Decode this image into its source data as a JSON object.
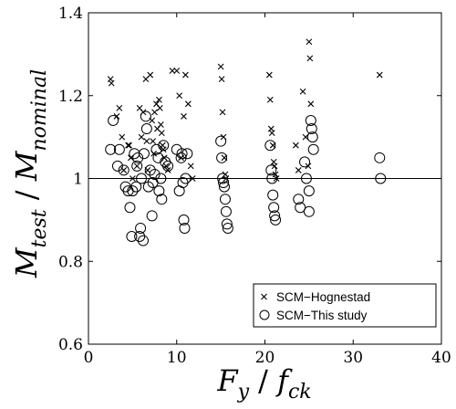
{
  "chart_data": {
    "type": "scatter",
    "title": "",
    "xlim": [
      0,
      40
    ],
    "ylim": [
      0.6,
      1.4
    ],
    "xticks": [
      0,
      10,
      20,
      30,
      40
    ],
    "yticks": [
      0.6,
      0.8,
      1,
      1.2,
      1.4
    ],
    "xtick_labels": [
      "0",
      "10",
      "20",
      "30",
      "40"
    ],
    "ytick_labels": [
      "0.6",
      "0.8",
      "1",
      "1.2",
      "1.4"
    ],
    "xlabel": {
      "main_1": "F",
      "sub_1": "y",
      "sep": " / ",
      "main_2": "f",
      "sub_2": "ck"
    },
    "ylabel": {
      "main_1": "M",
      "sub_1": "test",
      "sep": " / ",
      "main_2": "M",
      "sub_2": "nominal"
    },
    "reference_line_y": 1.0,
    "grid": false,
    "legend_position": "bottom-right",
    "series": [
      {
        "name": "SCM−Hognestad",
        "marker": "x",
        "points": [
          [
            2.5,
            1.24
          ],
          [
            2.6,
            1.23
          ],
          [
            3.2,
            1.15
          ],
          [
            3.5,
            1.17
          ],
          [
            3.8,
            1.1
          ],
          [
            4.0,
            1.02
          ],
          [
            4.5,
            1.08
          ],
          [
            4.6,
            1.08
          ],
          [
            4.8,
            1.05
          ],
          [
            5.0,
            1.0
          ],
          [
            5.5,
            1.03
          ],
          [
            5.8,
            1.17
          ],
          [
            6.0,
            1.1
          ],
          [
            6.2,
            1.16
          ],
          [
            6.5,
            1.24
          ],
          [
            6.6,
            1.09
          ],
          [
            6.7,
            1.02
          ],
          [
            7.0,
            1.25
          ],
          [
            7.2,
            1.14
          ],
          [
            7.3,
            1.09
          ],
          [
            7.4,
            1.06
          ],
          [
            7.5,
            1.16
          ],
          [
            7.7,
            1.18
          ],
          [
            7.8,
            1.12
          ],
          [
            8.0,
            1.19
          ],
          [
            8.1,
            1.17
          ],
          [
            8.2,
            1.13
          ],
          [
            8.3,
            1.11
          ],
          [
            8.4,
            1.08
          ],
          [
            8.5,
            1.07
          ],
          [
            8.6,
            1.05
          ],
          [
            8.8,
            1.03
          ],
          [
            9.0,
            1.02
          ],
          [
            9.5,
            1.26
          ],
          [
            10.0,
            1.26
          ],
          [
            10.3,
            1.2
          ],
          [
            10.5,
            1.05
          ],
          [
            10.8,
            1.15
          ],
          [
            11.0,
            1.25
          ],
          [
            11.3,
            1.18
          ],
          [
            11.6,
            1.03
          ],
          [
            11.8,
            1.0
          ],
          [
            15.0,
            1.27
          ],
          [
            15.1,
            1.24
          ],
          [
            15.2,
            1.16
          ],
          [
            15.3,
            1.1
          ],
          [
            15.4,
            1.05
          ],
          [
            15.5,
            1.01
          ],
          [
            15.6,
            1.0
          ],
          [
            20.5,
            1.25
          ],
          [
            20.6,
            1.19
          ],
          [
            20.7,
            1.12
          ],
          [
            20.8,
            1.11
          ],
          [
            20.9,
            1.08
          ],
          [
            21.0,
            1.04
          ],
          [
            21.1,
            1.03
          ],
          [
            21.2,
            1.01
          ],
          [
            21.3,
            1.0
          ],
          [
            23.5,
            1.08
          ],
          [
            23.8,
            1.02
          ],
          [
            24.3,
            1.21
          ],
          [
            24.6,
            1.1
          ],
          [
            24.9,
            1.03
          ],
          [
            25.0,
            1.33
          ],
          [
            25.1,
            1.29
          ],
          [
            25.2,
            1.18
          ],
          [
            33.0,
            1.25
          ]
        ]
      },
      {
        "name": "SCM−This study",
        "marker": "circle",
        "points": [
          [
            2.5,
            1.07
          ],
          [
            2.8,
            1.14
          ],
          [
            3.3,
            1.03
          ],
          [
            3.5,
            1.07
          ],
          [
            4.0,
            1.02
          ],
          [
            4.2,
            0.98
          ],
          [
            4.5,
            0.97
          ],
          [
            4.7,
            0.93
          ],
          [
            4.9,
            0.86
          ],
          [
            5.0,
            0.97
          ],
          [
            5.2,
            1.06
          ],
          [
            5.4,
            0.98
          ],
          [
            5.5,
            1.03
          ],
          [
            5.6,
            1.05
          ],
          [
            5.8,
            0.86
          ],
          [
            5.9,
            0.88
          ],
          [
            6.0,
            1.0
          ],
          [
            6.2,
            0.85
          ],
          [
            6.3,
            1.06
          ],
          [
            6.5,
            1.15
          ],
          [
            6.6,
            1.12
          ],
          [
            6.8,
            0.98
          ],
          [
            7.0,
            1.02
          ],
          [
            7.2,
            0.91
          ],
          [
            7.3,
            0.99
          ],
          [
            7.5,
            1.01
          ],
          [
            7.7,
            1.07
          ],
          [
            7.9,
            1.05
          ],
          [
            8.0,
            0.97
          ],
          [
            8.2,
            1.0
          ],
          [
            8.3,
            0.95
          ],
          [
            8.5,
            1.08
          ],
          [
            8.7,
            1.04
          ],
          [
            9.0,
            1.03
          ],
          [
            10.0,
            1.07
          ],
          [
            10.3,
            0.97
          ],
          [
            10.5,
            1.05
          ],
          [
            10.6,
            1.06
          ],
          [
            10.7,
            0.99
          ],
          [
            10.8,
            0.9
          ],
          [
            10.9,
            0.88
          ],
          [
            11.0,
            1.0
          ],
          [
            11.2,
            1.06
          ],
          [
            15.0,
            1.09
          ],
          [
            15.1,
            1.05
          ],
          [
            15.2,
            1.0
          ],
          [
            15.3,
            0.99
          ],
          [
            15.4,
            0.98
          ],
          [
            15.5,
            0.95
          ],
          [
            15.6,
            0.92
          ],
          [
            15.7,
            0.89
          ],
          [
            15.8,
            0.88
          ],
          [
            20.6,
            1.08
          ],
          [
            20.7,
            1.02
          ],
          [
            20.8,
            1.0
          ],
          [
            20.9,
            0.96
          ],
          [
            21.0,
            0.93
          ],
          [
            21.1,
            0.91
          ],
          [
            21.2,
            0.9
          ],
          [
            23.8,
            0.95
          ],
          [
            24.0,
            0.93
          ],
          [
            24.5,
            1.04
          ],
          [
            24.7,
            1.0
          ],
          [
            25.0,
            0.97
          ],
          [
            25.2,
            1.14
          ],
          [
            25.3,
            1.12
          ],
          [
            25.4,
            1.1
          ],
          [
            25.5,
            1.07
          ],
          [
            25.0,
            0.92
          ],
          [
            33.0,
            1.05
          ],
          [
            33.1,
            1.0
          ]
        ]
      }
    ]
  }
}
